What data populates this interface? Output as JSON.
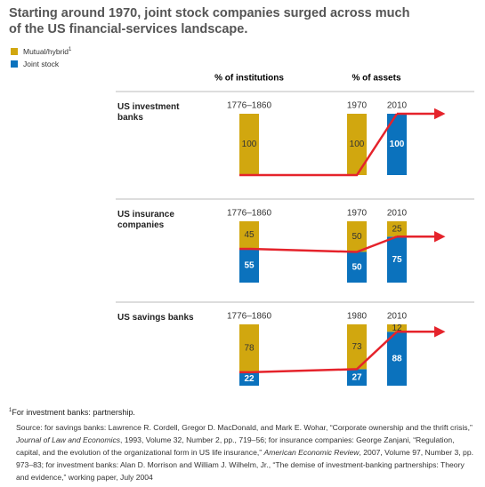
{
  "title": [
    "Starting around 1970, joint stock companies surged across much",
    "of the US financial-services landscape."
  ],
  "legend_footnote_mark": "1",
  "column_headers": [
    "% of institutions",
    "% of assets"
  ],
  "chart_data": [
    {
      "type": "bar",
      "stacked": true,
      "title": "US investment banks",
      "categories": [
        "1776–1860",
        "1970",
        "2010"
      ],
      "series": [
        {
          "name": "Mutual/hybrid",
          "color": "#d1a70f",
          "values": [
            100,
            100,
            0
          ]
        },
        {
          "name": "Joint stock",
          "color": "#0b72bd",
          "values": [
            0,
            0,
            100
          ]
        }
      ],
      "ylim": [
        0,
        100
      ],
      "trend_line": {
        "series": 1,
        "color": "#e5232b"
      }
    },
    {
      "type": "bar",
      "stacked": true,
      "title": "US insurance companies",
      "categories": [
        "1776–1860",
        "1970",
        "2010"
      ],
      "series": [
        {
          "name": "Mutual/hybrid",
          "color": "#d1a70f",
          "values": [
            45,
            50,
            25
          ]
        },
        {
          "name": "Joint stock",
          "color": "#0b72bd",
          "values": [
            55,
            50,
            75
          ]
        }
      ],
      "ylim": [
        0,
        100
      ],
      "trend_line": {
        "series": 1,
        "color": "#e5232b"
      }
    },
    {
      "type": "bar",
      "stacked": true,
      "title": "US savings banks",
      "categories": [
        "1776–1860",
        "1980",
        "2010"
      ],
      "series": [
        {
          "name": "Mutual/hybrid",
          "color": "#d1a70f",
          "values": [
            78,
            73,
            12
          ]
        },
        {
          "name": "Joint stock",
          "color": "#0b72bd",
          "values": [
            22,
            27,
            88
          ]
        }
      ],
      "ylim": [
        0,
        100
      ],
      "trend_line": {
        "series": 1,
        "color": "#e5232b"
      }
    }
  ],
  "footnote": {
    "mark": "1",
    "text": "For investment banks: partnership."
  },
  "source": [
    {
      "text": "Source: for savings banks: Lawrence R. Cordell, Gregor D. MacDonald, and Mark E. Wohar, “Corporate ownership and the thrift crisis,” ",
      "italic": false
    },
    {
      "text": "Journal of Law and Economics",
      "italic": true
    },
    {
      "text": ", 1993, Volume 32, Number 2, pp., 719–56; for insurance companies: George Zanjani, “Regulation, capital, and the evolution of the organizational form in US life insurance,” ",
      "italic": false
    },
    {
      "text": "American Economic Review",
      "italic": true
    },
    {
      "text": ", 2007, Volume 97, Number 3, pp. 973–83; for investment banks: Alan D. Morrison and William J. Wilhelm, Jr., “The demise of investment-banking partnerships: Theory and evidence,” working paper, July 2004",
      "italic": false
    }
  ]
}
